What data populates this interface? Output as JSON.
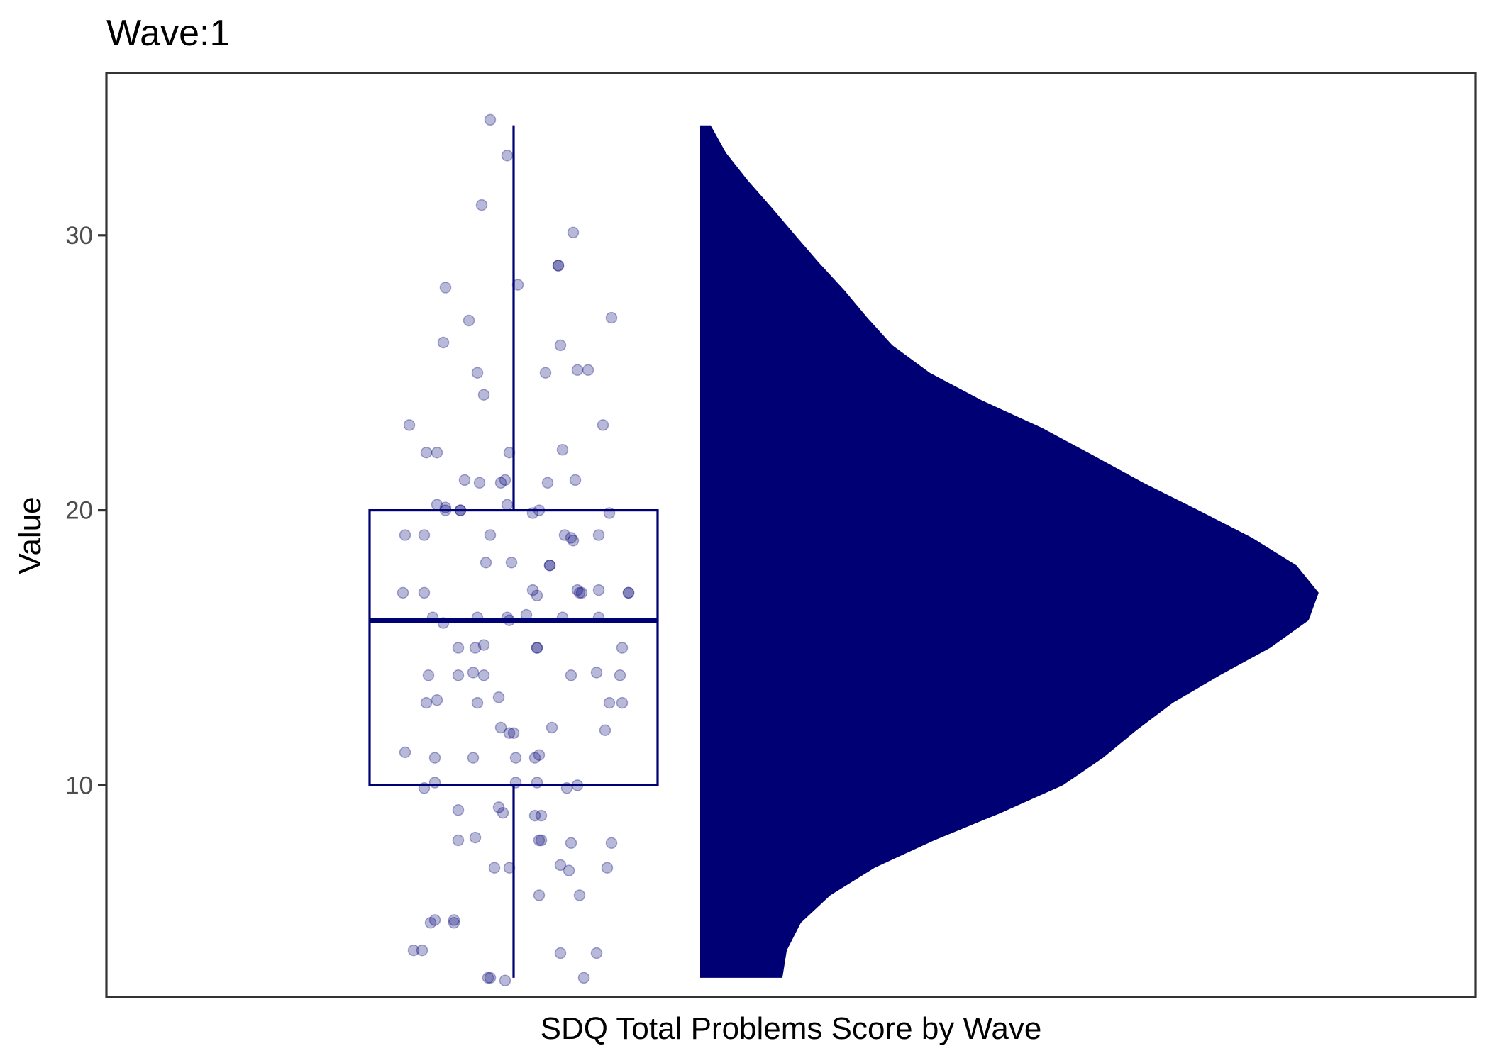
{
  "chart_data": {
    "type": "raincloud",
    "title": "Wave:1",
    "xlabel": "SDQ Total Problems Score by Wave",
    "ylabel": "Value",
    "ylim": [
      2.3,
      35.9
    ],
    "yticks": [
      10,
      20,
      30
    ],
    "grid": false,
    "legend": "none",
    "color": "#000075",
    "boxplot": {
      "min": 3,
      "q1": 10,
      "median": 16,
      "q3": 20,
      "max": 34
    },
    "density": {
      "y": [
        34,
        33,
        32,
        31,
        30,
        29,
        28,
        27,
        26,
        25,
        24,
        23,
        22,
        21,
        20,
        19,
        18,
        17,
        16,
        15,
        14,
        13,
        12,
        11,
        10,
        9,
        8,
        7,
        6,
        5,
        4,
        3
      ],
      "density": [
        0.026,
        0.064,
        0.118,
        0.178,
        0.236,
        0.295,
        0.358,
        0.415,
        0.477,
        0.57,
        0.699,
        0.848,
        0.975,
        1.1,
        1.237,
        1.37,
        1.48,
        1.535,
        1.51,
        1.415,
        1.29,
        1.173,
        1.083,
        1.0,
        0.9,
        0.747,
        0.581,
        0.433,
        0.323,
        0.25,
        0.215,
        0.204
      ]
    },
    "points": [
      [
        -0.11,
        34.2
      ],
      [
        -0.03,
        32.9
      ],
      [
        -0.15,
        31.1
      ],
      [
        0.28,
        30.1
      ],
      [
        0.21,
        28.9
      ],
      [
        0.21,
        28.9
      ],
      [
        -0.32,
        28.1
      ],
      [
        0.02,
        28.2
      ],
      [
        0.46,
        27.0
      ],
      [
        -0.21,
        26.9
      ],
      [
        -0.33,
        26.1
      ],
      [
        0.22,
        26.0
      ],
      [
        -0.17,
        25.0
      ],
      [
        0.15,
        25.0
      ],
      [
        0.3,
        25.1
      ],
      [
        0.35,
        25.1
      ],
      [
        -0.14,
        24.2
      ],
      [
        -0.49,
        23.1
      ],
      [
        0.42,
        23.1
      ],
      [
        -0.41,
        22.1
      ],
      [
        -0.36,
        22.1
      ],
      [
        0.23,
        22.2
      ],
      [
        -0.02,
        22.1
      ],
      [
        -0.23,
        21.1
      ],
      [
        -0.16,
        21.0
      ],
      [
        0.29,
        21.1
      ],
      [
        0.16,
        21.0
      ],
      [
        -0.06,
        21.0
      ],
      [
        -0.04,
        21.1
      ],
      [
        -0.36,
        20.2
      ],
      [
        -0.32,
        20.1
      ],
      [
        -0.25,
        20.0
      ],
      [
        -0.32,
        20.0
      ],
      [
        -0.25,
        20.0
      ],
      [
        -0.03,
        20.2
      ],
      [
        0.09,
        19.9
      ],
      [
        0.12,
        20.0
      ],
      [
        0.45,
        19.9
      ],
      [
        -0.51,
        19.1
      ],
      [
        -0.42,
        19.1
      ],
      [
        -0.11,
        19.1
      ],
      [
        0.24,
        19.1
      ],
      [
        0.27,
        19.0
      ],
      [
        0.28,
        18.9
      ],
      [
        0.4,
        19.1
      ],
      [
        -0.13,
        18.1
      ],
      [
        -0.01,
        18.1
      ],
      [
        0.17,
        18.0
      ],
      [
        0.17,
        18.0
      ],
      [
        0.09,
        17.1
      ],
      [
        0.3,
        17.1
      ],
      [
        0.4,
        17.1
      ],
      [
        0.31,
        17.0
      ],
      [
        0.32,
        17.0
      ],
      [
        -0.52,
        17.0
      ],
      [
        -0.42,
        17.0
      ],
      [
        0.11,
        16.9
      ],
      [
        0.54,
        17.0
      ],
      [
        0.54,
        17.0
      ],
      [
        -0.38,
        16.1
      ],
      [
        -0.17,
        16.1
      ],
      [
        -0.03,
        16.1
      ],
      [
        -0.02,
        16.0
      ],
      [
        0.06,
        16.2
      ],
      [
        0.23,
        16.1
      ],
      [
        0.4,
        16.1
      ],
      [
        -0.33,
        15.9
      ],
      [
        0.11,
        15.0
      ],
      [
        0.11,
        15.0
      ],
      [
        -0.26,
        15.0
      ],
      [
        -0.18,
        15.0
      ],
      [
        -0.14,
        15.1
      ],
      [
        0.51,
        15.0
      ],
      [
        -0.4,
        14.0
      ],
      [
        -0.26,
        14.0
      ],
      [
        -0.19,
        14.1
      ],
      [
        -0.14,
        14.0
      ],
      [
        0.27,
        14.0
      ],
      [
        0.39,
        14.1
      ],
      [
        0.5,
        14.0
      ],
      [
        -0.36,
        13.1
      ],
      [
        -0.41,
        13.0
      ],
      [
        -0.17,
        13.0
      ],
      [
        -0.07,
        13.2
      ],
      [
        0.45,
        13.0
      ],
      [
        0.51,
        13.0
      ],
      [
        -0.06,
        12.1
      ],
      [
        -0.02,
        11.9
      ],
      [
        0.0,
        11.9
      ],
      [
        0.18,
        12.1
      ],
      [
        0.43,
        12.0
      ],
      [
        -0.51,
        11.2
      ],
      [
        -0.37,
        11.0
      ],
      [
        -0.19,
        11.0
      ],
      [
        0.01,
        11.0
      ],
      [
        0.1,
        11.0
      ],
      [
        0.12,
        11.1
      ],
      [
        -0.42,
        9.9
      ],
      [
        -0.37,
        10.1
      ],
      [
        0.01,
        10.1
      ],
      [
        0.11,
        10.1
      ],
      [
        0.25,
        9.9
      ],
      [
        0.3,
        10.0
      ],
      [
        -0.26,
        9.1
      ],
      [
        -0.07,
        9.2
      ],
      [
        -0.05,
        9.0
      ],
      [
        0.1,
        8.9
      ],
      [
        0.13,
        8.9
      ],
      [
        -0.26,
        8.0
      ],
      [
        -0.18,
        8.1
      ],
      [
        0.12,
        8.0
      ],
      [
        0.13,
        8.0
      ],
      [
        0.27,
        7.9
      ],
      [
        0.46,
        7.9
      ],
      [
        -0.09,
        7.0
      ],
      [
        -0.02,
        7.0
      ],
      [
        0.22,
        7.1
      ],
      [
        0.26,
        6.9
      ],
      [
        0.44,
        7.0
      ],
      [
        0.12,
        6.0
      ],
      [
        0.31,
        6.0
      ],
      [
        -0.37,
        5.1
      ],
      [
        -0.39,
        5.0
      ],
      [
        -0.28,
        5.0
      ],
      [
        -0.28,
        5.1
      ],
      [
        -0.47,
        4.0
      ],
      [
        -0.43,
        4.0
      ],
      [
        0.22,
        3.9
      ],
      [
        0.39,
        3.9
      ],
      [
        -0.12,
        3.0
      ],
      [
        -0.11,
        3.0
      ],
      [
        -0.04,
        2.9
      ],
      [
        0.33,
        3.0
      ]
    ]
  }
}
